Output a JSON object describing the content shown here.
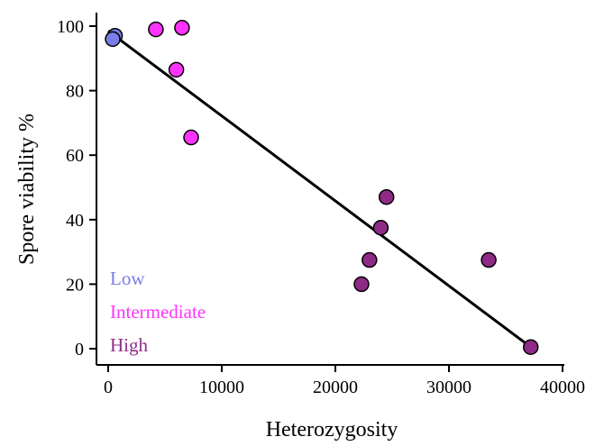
{
  "chart_data": {
    "type": "scatter",
    "title": "",
    "xlabel": "Heterozygosity",
    "ylabel": "Spore viability %",
    "xlim": [
      0,
      40000
    ],
    "ylim": [
      0,
      100
    ],
    "xticks": [
      "0",
      "10000",
      "20000",
      "30000",
      "40000"
    ],
    "yticks": [
      "0",
      "20",
      "40",
      "60",
      "80",
      "100"
    ],
    "grid": false,
    "legend_position": "bottom-left",
    "series": [
      {
        "name": "Low",
        "color": "#7b7ee6",
        "points": [
          [
            600,
            97
          ],
          [
            400,
            96
          ]
        ]
      },
      {
        "name": "Intermediate",
        "color": "#ff33ff",
        "points": [
          [
            4200,
            99
          ],
          [
            6500,
            99.5
          ],
          [
            6000,
            86.5
          ],
          [
            7300,
            65.5
          ]
        ]
      },
      {
        "name": "High",
        "color": "#8e2b86",
        "points": [
          [
            24500,
            47
          ],
          [
            24000,
            37.5
          ],
          [
            23000,
            27.5
          ],
          [
            22300,
            20
          ],
          [
            33500,
            27.5
          ],
          [
            37200,
            0.5
          ]
        ]
      }
    ],
    "fit_line": {
      "x": [
        0,
        37200
      ],
      "y": [
        98.5,
        0.5
      ]
    }
  }
}
